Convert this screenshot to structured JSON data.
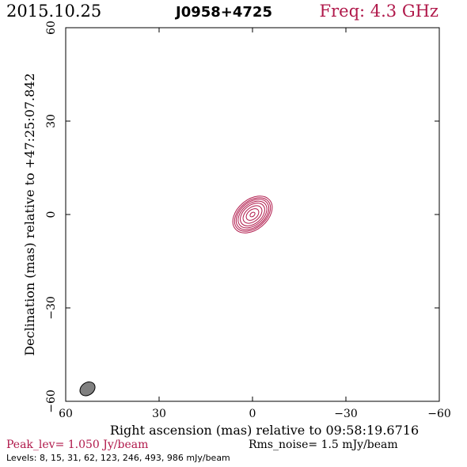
{
  "header": {
    "date": "2015.10.25",
    "source": "J0958+4725",
    "freq": "Freq: 4.3 GHz"
  },
  "chart_data": {
    "type": "contour",
    "xlabel": "Right ascension (mas) relative to 09:58:19.6716",
    "ylabel": "Declination (mas) relative to +47:25:07.842",
    "xlim": [
      60,
      -60
    ],
    "ylim": [
      -60,
      60
    ],
    "xticks": [
      60,
      30,
      0,
      -30,
      -60
    ],
    "yticks": [
      60,
      30,
      0,
      -30,
      -60
    ],
    "xtick_labels": [
      "60",
      "30",
      "0",
      "−30",
      "−60"
    ],
    "ytick_labels": [
      "60",
      "30",
      "0",
      "−30",
      "−60"
    ],
    "contour_color": "#b0184a",
    "source_center": [
      0,
      0
    ],
    "position_angle_deg": 40,
    "contours": [
      {
        "level": 8,
        "semi_major": 7.2,
        "semi_minor": 4.8
      },
      {
        "level": 15,
        "semi_major": 6.6,
        "semi_minor": 4.3
      },
      {
        "level": 31,
        "semi_major": 6.0,
        "semi_minor": 3.9
      },
      {
        "level": 62,
        "semi_major": 5.3,
        "semi_minor": 3.4
      },
      {
        "level": 123,
        "semi_major": 4.5,
        "semi_minor": 2.9
      },
      {
        "level": 246,
        "semi_major": 3.5,
        "semi_minor": 2.2
      },
      {
        "level": 493,
        "semi_major": 2.3,
        "semi_minor": 1.5
      },
      {
        "level": 986,
        "semi_major": 0.9,
        "semi_minor": 0.6
      }
    ],
    "beam": {
      "x": 53,
      "y": -56,
      "semi_major": 2.6,
      "semi_minor": 2.0,
      "angle_deg": 35,
      "color": "#808080"
    },
    "peak_level": "Peak_lev=  1.050 Jy/beam",
    "rms_noise": "Rms_noise=  1.5 mJy/beam",
    "levels_text": "Levels:   8,  15,  31,  62, 123, 246, 493, 986  mJy/beam"
  }
}
